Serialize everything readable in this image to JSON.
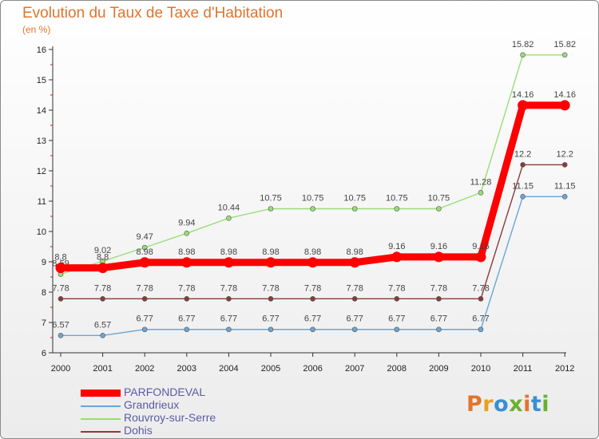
{
  "header": {
    "title": "Evolution du Taux de Taxe d'Habitation",
    "subtitle": "(en %)"
  },
  "chart_data": {
    "type": "line",
    "title": "Evolution du Taux de Taxe d'Habitation",
    "subtitle": "(en %)",
    "xlabel": "",
    "ylabel": "",
    "x": [
      "2000",
      "2001",
      "2002",
      "2003",
      "2004",
      "2005",
      "2006",
      "2007",
      "2008",
      "2009",
      "2010",
      "2011",
      "2012"
    ],
    "yticks": [
      "6",
      "7",
      "8",
      "9",
      "10",
      "11",
      "12",
      "13",
      "14",
      "15",
      "16"
    ],
    "ylim": [
      6,
      16
    ],
    "grid": false,
    "legend_position": "bottom-left",
    "series": [
      {
        "name": "PARFONDEVAL",
        "color": "#ff0000",
        "emphasis": "thick",
        "values": [
          8.8,
          8.8,
          8.98,
          8.98,
          8.98,
          8.98,
          8.98,
          8.98,
          9.16,
          9.16,
          9.16,
          14.16,
          14.16
        ],
        "labels": [
          "8.8",
          "8.8",
          "8.98",
          "8.98",
          "8.98",
          "8.98",
          "8.98",
          "8.98",
          "9.16",
          "9.16",
          "9.16",
          "14.16",
          "14.16"
        ]
      },
      {
        "name": "Grandrieux",
        "color": "#6aa5d6",
        "values": [
          6.57,
          6.57,
          6.77,
          6.77,
          6.77,
          6.77,
          6.77,
          6.77,
          6.77,
          6.77,
          6.77,
          11.15,
          11.15
        ],
        "labels": [
          "6.57",
          "6.57",
          "6.77",
          "6.77",
          "6.77",
          "6.77",
          "6.77",
          "6.77",
          "6.77",
          "6.77",
          "6.77",
          "11.15",
          "11.15"
        ]
      },
      {
        "name": "Rouvroy-sur-Serre",
        "color": "#99dd77",
        "values": [
          8.59,
          9.02,
          9.47,
          9.94,
          10.44,
          10.75,
          10.75,
          10.75,
          10.75,
          10.75,
          11.28,
          15.82,
          15.82
        ],
        "labels": [
          "8.59",
          "9.02",
          "9.47",
          "9.94",
          "10.44",
          "10.75",
          "10.75",
          "10.75",
          "10.75",
          "10.75",
          "11.28",
          "15.82",
          "15.82"
        ]
      },
      {
        "name": "Dohis",
        "color": "#8a3a3a",
        "values": [
          7.78,
          7.78,
          7.78,
          7.78,
          7.78,
          7.78,
          7.78,
          7.78,
          7.78,
          7.78,
          7.78,
          12.2,
          12.2
        ],
        "labels": [
          "7.78",
          "7.78",
          "7.78",
          "7.78",
          "7.78",
          "7.78",
          "7.78",
          "7.78",
          "7.78",
          "7.78",
          "7.78",
          "12.2",
          "12.2"
        ]
      }
    ]
  },
  "logo": {
    "text": "Proxiti",
    "letter_colors": [
      "#e0752d",
      "#e8a020",
      "#3a8fd0",
      "#6ab030",
      "#e0752d",
      "#3a8fd0",
      "#6ab030"
    ]
  }
}
